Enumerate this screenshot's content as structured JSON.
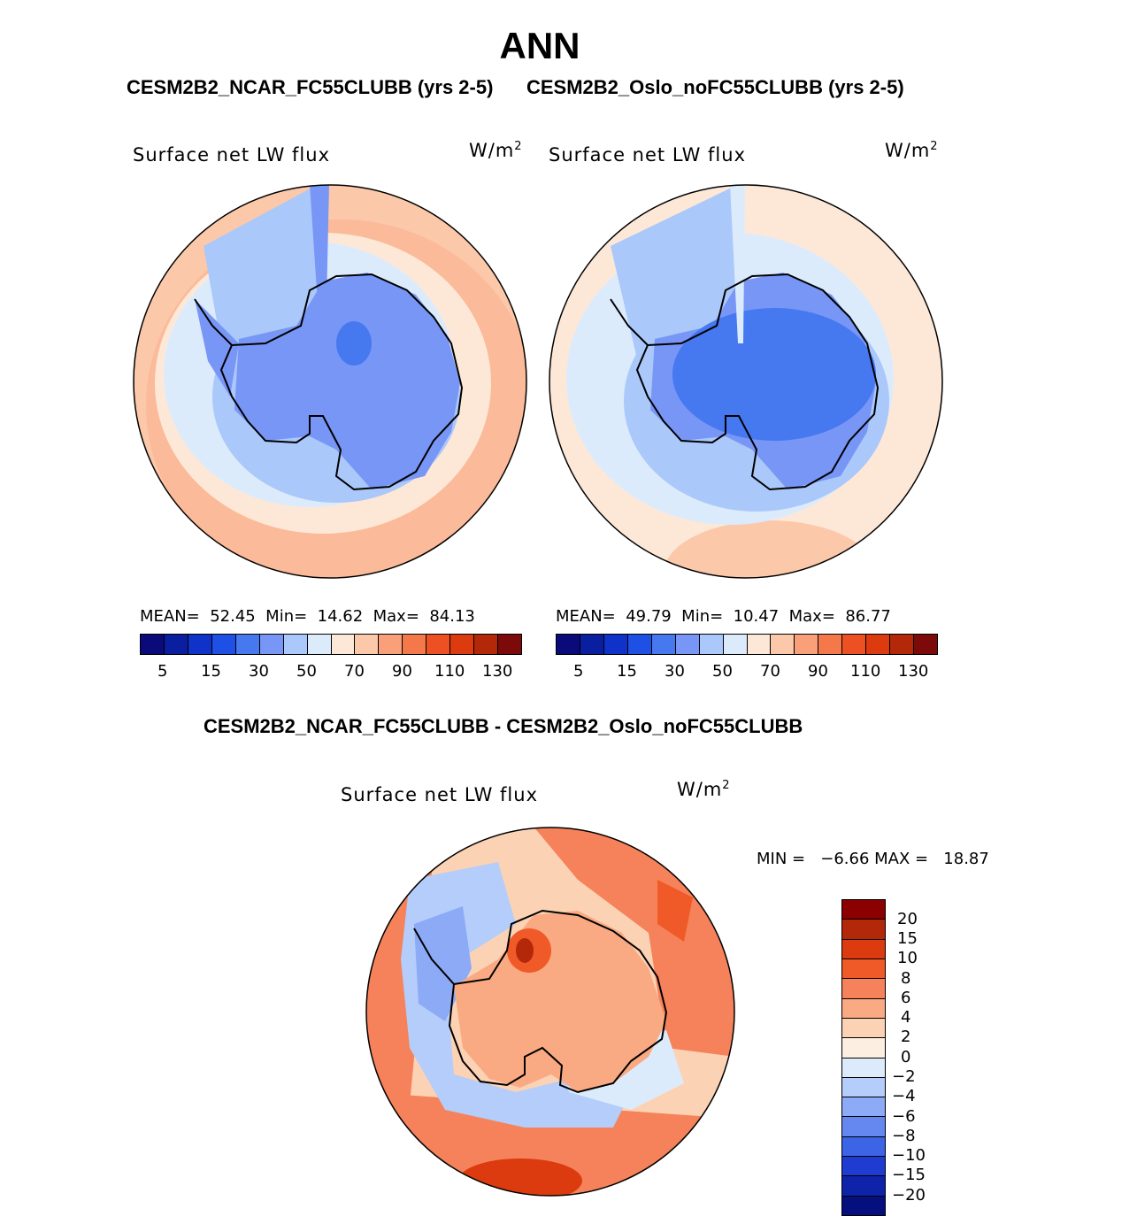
{
  "page": {
    "title": "ANN",
    "subtitle_left": "CESM2B2_NCAR_FC55CLUBB (yrs 2-5)",
    "subtitle_right": "CESM2B2_Oslo_noFC55CLUBB (yrs 2-5)",
    "diff_title": "CESM2B2_NCAR_FC55CLUBB - CESM2B2_Oslo_noFC55CLUBB"
  },
  "panels": [
    {
      "id": "ncar",
      "variable": "Surface net LW flux",
      "units_base": "W/m",
      "units_exp": "2",
      "stats": "MEAN=  52.45  Min=  14.62  Max=  84.13",
      "mean": 52.45,
      "min": 14.62,
      "max": 84.13
    },
    {
      "id": "oslo",
      "variable": "Surface net LW flux",
      "units_base": "W/m",
      "units_exp": "2",
      "stats": "MEAN=  49.79  Min=  10.47  Max=  86.77",
      "mean": 49.79,
      "min": 10.47,
      "max": 86.77
    },
    {
      "id": "diff",
      "variable": "Surface net LW flux",
      "units_base": "W/m",
      "units_exp": "2",
      "stats": "MIN =   −6.66 MAX =   18.87",
      "min": -6.66,
      "max": 18.87
    }
  ],
  "colorbar_abs": {
    "colors": [
      "#0a0a7a",
      "#0a1ea0",
      "#0f32c8",
      "#1e50e6",
      "#4678f0",
      "#7896f5",
      "#aac8fa",
      "#dcebfc",
      "#fde8d8",
      "#fcc8aa",
      "#f9a07a",
      "#f5784b",
      "#ec5023",
      "#dc3a0f",
      "#b4280a",
      "#7d0a0a"
    ],
    "ticks": [
      "5",
      "15",
      "30",
      "50",
      "70",
      "90",
      "110",
      "130"
    ]
  },
  "colorbar_diff": {
    "colors": [
      "#8b0000",
      "#b4280a",
      "#dc3a0f",
      "#f05a28",
      "#f5825a",
      "#f9aa82",
      "#fcd2b4",
      "#fdeee2",
      "#dcebfc",
      "#b4cdfa",
      "#8caaf5",
      "#6488f0",
      "#3c64e6",
      "#1e3cd2",
      "#0f23aa",
      "#050f7d"
    ],
    "ticks": [
      "20",
      "15",
      "10",
      "8",
      "6",
      "4",
      "2",
      "0",
      "−2",
      "−4",
      "−6",
      "−8",
      "−10",
      "−15",
      "−20"
    ]
  }
}
